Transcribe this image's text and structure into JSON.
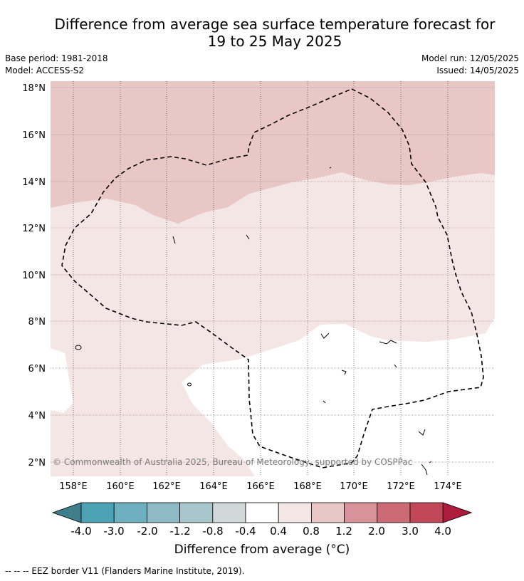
{
  "header": {
    "title_line1": "Difference from average sea surface temperature forecast for",
    "title_line2": "19 to 25 May 2025",
    "base_period": "Base period: 1981-2018",
    "model": "Model: ACCESS-S2",
    "model_run": "Model run: 12/05/2025",
    "issued": "Issued: 14/05/2025"
  },
  "map": {
    "lat_ticks": [
      "18°N",
      "16°N",
      "14°N",
      "12°N",
      "10°N",
      "8°N",
      "6°N",
      "4°N",
      "2°N"
    ],
    "lon_ticks": [
      "158°E",
      "160°E",
      "162°E",
      "164°E",
      "166°E",
      "168°E",
      "170°E",
      "172°E",
      "174°E"
    ],
    "watermark": "© Commonwealth of Australia 2025, Bureau of Meteorology, supported by COSPPac",
    "colors": {
      "band_0_8_to_1_2": "#e8c7c4",
      "band_0_4_to_0_8": "#f4e6e5",
      "band_neg0_4_to_0_4": "#ffffff",
      "gridline": "#b99a98",
      "eez_border": "#000000"
    }
  },
  "colorbar": {
    "colors": [
      "#3f7f8c",
      "#4ba3b5",
      "#6eb0bf",
      "#8fb9c4",
      "#a9c6cc",
      "#d1d8da",
      "#ffffff",
      "#f4e6e5",
      "#e8c7c4",
      "#d8929a",
      "#cc6a75",
      "#c24757",
      "#b01c3c"
    ],
    "labels": [
      "-4.0",
      "-3.0",
      "-2.0",
      "-1.2",
      "-0.8",
      "-0.4",
      "0.4",
      "0.8",
      "1.2",
      "2.0",
      "3.0",
      "4.0"
    ],
    "title": "Difference from average (°C)"
  },
  "footer": {
    "legend": "--  --  -- EEZ border V11 (Flanders Marine Institute, 2019)."
  }
}
